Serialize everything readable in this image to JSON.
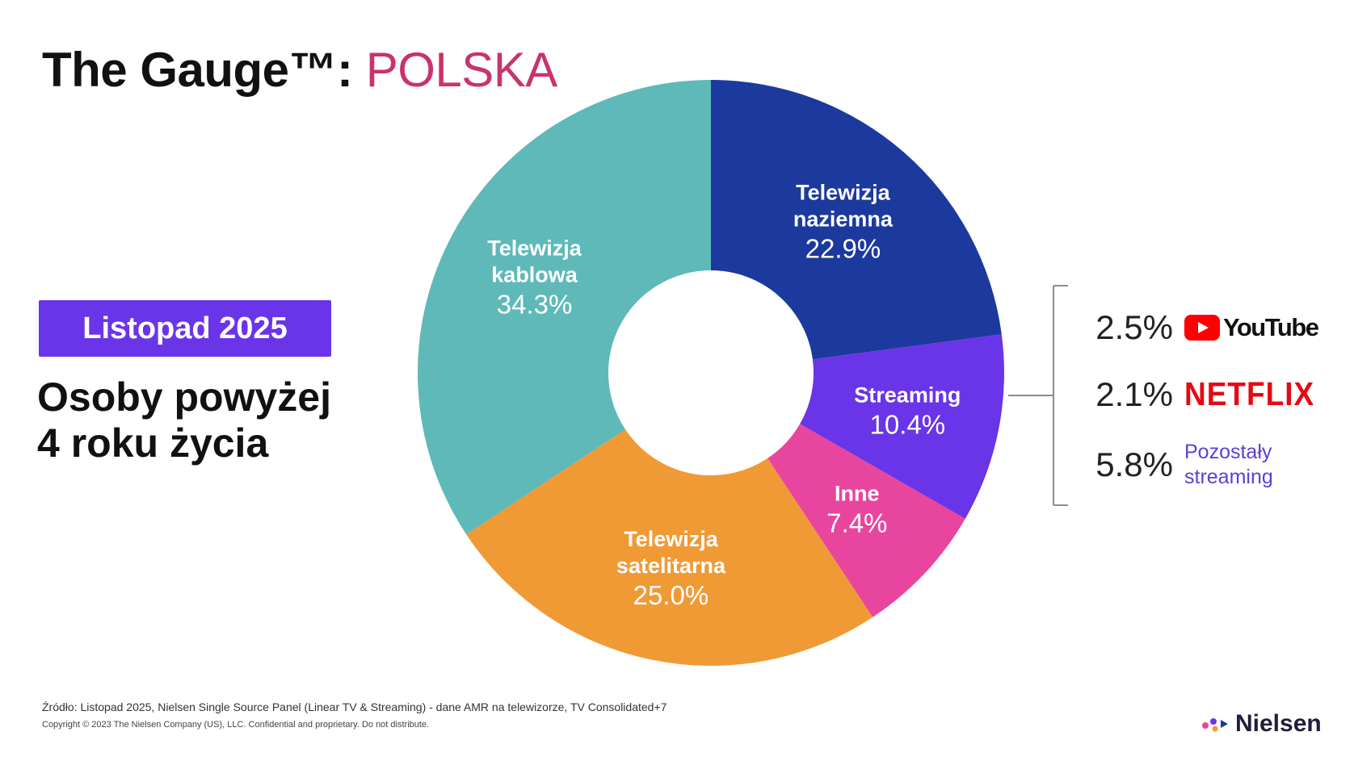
{
  "title": {
    "main": "The Gauge™:",
    "accent": "POLSKA"
  },
  "period_badge": "Listopad 2025",
  "audience": {
    "line1": "Osoby powyżej",
    "line2": "4 roku życia"
  },
  "colors": {
    "accent": "#c8336f",
    "badge": "#6a35e8",
    "kablowa": "#5fb9b9",
    "naziemna": "#1c3a9e",
    "streaming": "#6a35e8",
    "inne": "#e8469e",
    "satelitarna": "#f09a36"
  },
  "chart_data": {
    "type": "pie",
    "donut": true,
    "slices": [
      {
        "label_lines": [
          "Telewizja",
          "naziemna"
        ],
        "value": 22.9,
        "value_label": "22.9%",
        "color": "#1c3a9e"
      },
      {
        "label_lines": [
          "Streaming"
        ],
        "value": 10.4,
        "value_label": "10.4%",
        "color": "#6a35e8"
      },
      {
        "label_lines": [
          "Inne"
        ],
        "value": 7.4,
        "value_label": "7.4%",
        "color": "#e8469e"
      },
      {
        "label_lines": [
          "Telewizja",
          "satelitarna"
        ],
        "value": 25.0,
        "value_label": "25.0%",
        "color": "#f09a36"
      },
      {
        "label_lines": [
          "Telewizja",
          "kablowa"
        ],
        "value": 34.3,
        "value_label": "34.3%",
        "color": "#5fb9b9"
      }
    ],
    "streaming_breakdown": [
      {
        "value": 2.5,
        "value_label": "2.5%",
        "brand": "YouTube"
      },
      {
        "value": 2.1,
        "value_label": "2.1%",
        "brand": "NETFLIX"
      },
      {
        "value": 5.8,
        "value_label": "5.8%",
        "brand": "Pozostały streaming",
        "brand_lines": [
          "Pozostały",
          "streaming"
        ]
      }
    ]
  },
  "footer": {
    "source": "Źródło: Listopad 2025, Nielsen Single Source Panel (Linear TV & Streaming) - dane AMR na telewizorze, TV Consolidated+7",
    "copyright": "Copyright © 2023 The Nielsen Company (US), LLC. Confidential and proprietary. Do not distribute.",
    "brand": "Nielsen"
  }
}
